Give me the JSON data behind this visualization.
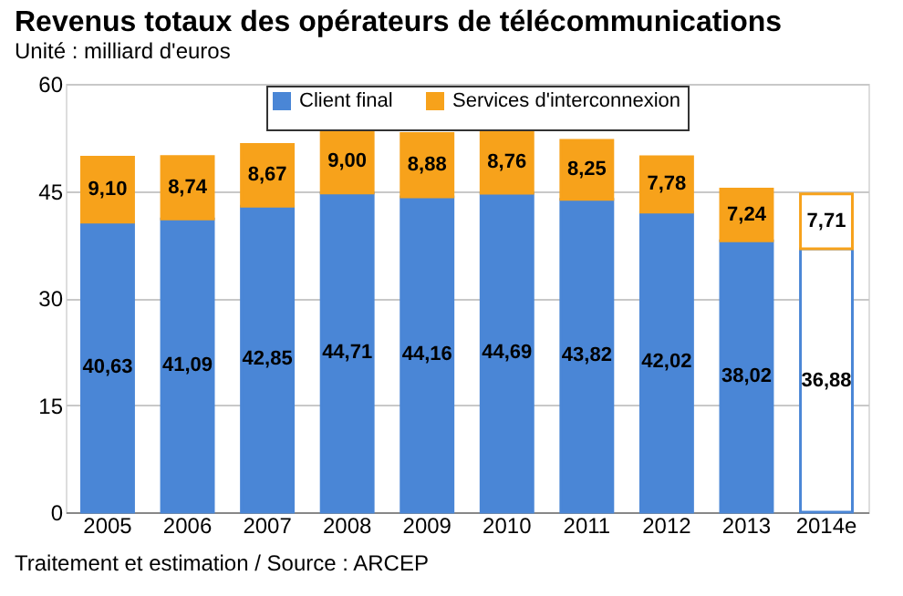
{
  "chart_data": {
    "type": "bar",
    "stacked": true,
    "title": "Revenus totaux des opérateurs de télécommunications",
    "subtitle": "Unité : milliard d'euros",
    "categories": [
      "2005",
      "2006",
      "2007",
      "2008",
      "2009",
      "2010",
      "2011",
      "2012",
      "2013",
      "2014e"
    ],
    "series": [
      {
        "name": "Client final",
        "color": "#4a86d6",
        "colors": [
          "#4a86d6",
          "#4a86d6",
          "#4a86d6",
          "#4a86d6",
          "#4a86d6",
          "#4a86d6",
          "#4a86d6",
          "#4a86d6",
          "#4a86d6",
          "#ffffff"
        ],
        "values": [
          40.63,
          41.09,
          42.85,
          44.71,
          44.16,
          44.69,
          43.82,
          42.02,
          38.02,
          36.88
        ],
        "value_labels": [
          "40,63",
          "41,09",
          "42,85",
          "44,71",
          "44,16",
          "44,69",
          "43,82",
          "42,02",
          "38,02",
          "36,88"
        ]
      },
      {
        "name": "Services d'interconnexion",
        "color": "#f7a21b",
        "colors": [
          "#f7a21b",
          "#f7a21b",
          "#f7a21b",
          "#f7a21b",
          "#f7a21b",
          "#f7a21b",
          "#f7a21b",
          "#f7a21b",
          "#f7a21b",
          "#ffffff"
        ],
        "values": [
          9.1,
          8.74,
          8.67,
          9.0,
          8.88,
          8.76,
          8.25,
          7.78,
          7.24,
          7.71
        ],
        "value_labels": [
          "9,10",
          "8,74",
          "8,67",
          "9,00",
          "8,88",
          "8,76",
          "8,25",
          "7,78",
          "7,24",
          "7,71"
        ]
      }
    ],
    "ylim": [
      0,
      60
    ],
    "yticks": [
      0,
      15,
      30,
      45,
      60
    ],
    "grid": "y",
    "legend": "top",
    "annotations": [
      "Traitement et estimation / Source : ARCEP"
    ]
  }
}
